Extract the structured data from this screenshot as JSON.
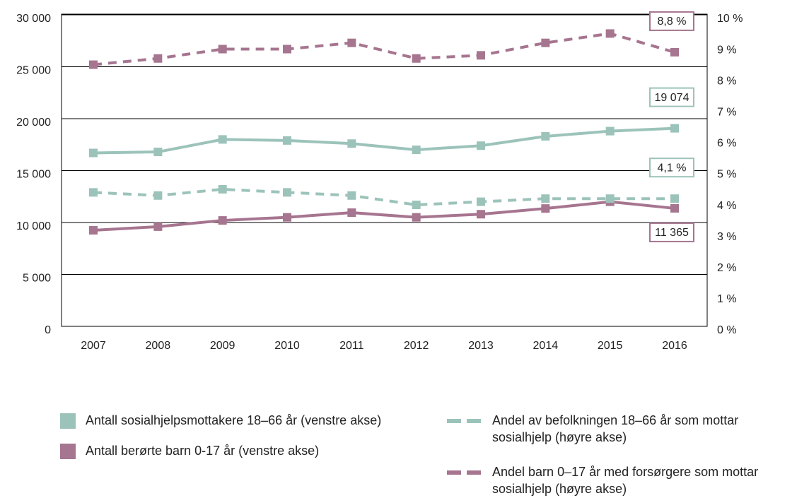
{
  "chart_data": {
    "type": "line",
    "categories": [
      "2007",
      "2008",
      "2009",
      "2010",
      "2011",
      "2012",
      "2013",
      "2014",
      "2015",
      "2016"
    ],
    "series": [
      {
        "name": "Antall sosialhjelpsmottakere 18–66 år (venstre akse)",
        "color": "#9cc3ba",
        "style": "solid",
        "axis": "y",
        "values": [
          16700,
          16800,
          18000,
          17900,
          17600,
          17000,
          17400,
          18300,
          18800,
          19074
        ],
        "value_labels": [
          null,
          null,
          null,
          null,
          null,
          null,
          null,
          null,
          null,
          "19 074"
        ]
      },
      {
        "name": "Antall berørte barn 0-17 år (venstre akse)",
        "color": "#a6758f",
        "style": "solid",
        "axis": "y",
        "values": [
          9250,
          9600,
          10200,
          10500,
          10950,
          10500,
          10800,
          11350,
          12000,
          11365
        ],
        "value_labels": [
          null,
          null,
          null,
          null,
          null,
          null,
          null,
          null,
          null,
          "11 365"
        ]
      },
      {
        "name": "Andel av befolkningen 18–66 år som mottar sosialhjelp (høyre akse)",
        "color": "#9cc3ba",
        "style": "dashed",
        "axis": "y2",
        "values": [
          4.3,
          4.2,
          4.4,
          4.3,
          4.2,
          3.9,
          4.0,
          4.1,
          4.1,
          4.1
        ],
        "value_labels": [
          null,
          null,
          null,
          null,
          null,
          null,
          null,
          null,
          null,
          "4,1 %"
        ]
      },
      {
        "name": "Andel barn 0–17 år med forsørgere som mottar sosialhjelp (høyre akse)",
        "color": "#a6758f",
        "style": "dashed",
        "axis": "y2",
        "values": [
          8.4,
          8.6,
          8.9,
          8.9,
          9.1,
          8.6,
          8.7,
          9.1,
          9.4,
          8.8
        ],
        "value_labels": [
          null,
          null,
          null,
          null,
          null,
          null,
          null,
          null,
          null,
          "8,8 %"
        ]
      }
    ],
    "ylim": [
      0,
      30000
    ],
    "yticks": [
      0,
      {
        "value": 5000,
        "label": "5 000"
      },
      {
        "value": 10000,
        "label": "10 000"
      },
      {
        "value": 15000,
        "label": "15 000"
      },
      {
        "value": 20000,
        "label": "20 000"
      },
      {
        "value": 25000,
        "label": "25 000"
      },
      {
        "value": 30000,
        "label": "30 000"
      }
    ],
    "y2lim": [
      0,
      10
    ],
    "y2ticks": [
      {
        "value": 0,
        "label": "0 %"
      },
      {
        "value": 1,
        "label": "1 %"
      },
      {
        "value": 2,
        "label": "2 %"
      },
      {
        "value": 3,
        "label": "3 %"
      },
      {
        "value": 4,
        "label": "4 %"
      },
      {
        "value": 5,
        "label": "5 %"
      },
      {
        "value": 6,
        "label": "6 %"
      },
      {
        "value": 7,
        "label": "7 %"
      },
      {
        "value": 8,
        "label": "8 %"
      },
      {
        "value": 9,
        "label": "9 %"
      },
      {
        "value": 10,
        "label": "10 %"
      }
    ],
    "grid": true
  }
}
